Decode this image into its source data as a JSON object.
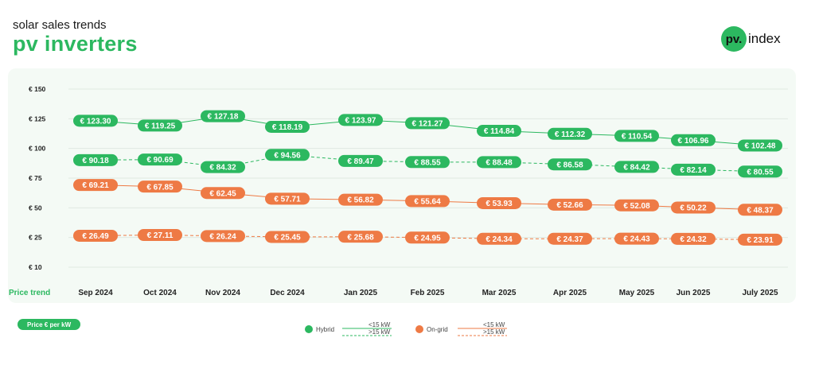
{
  "header": {
    "subtitle": "solar sales trends",
    "title": "pv inverters"
  },
  "logo": {
    "badge": "pv.",
    "text": "index"
  },
  "unit_label": "Price € per kW",
  "legend": {
    "hybrid": "Hybrid",
    "ongrid": "On-grid",
    "solid": "<15 kW",
    "dashed": ">15 kW"
  },
  "colors": {
    "hybrid": "#2cb860",
    "ongrid": "#ee7a45"
  },
  "chart_data": {
    "type": "line",
    "x_row_label": "Price trend",
    "categories": [
      "Sep 2024",
      "Oct 2024",
      "Nov 2024",
      "Dec 2024",
      "Jan 2025",
      "Feb 2025",
      "Mar 2025",
      "Apr 2025",
      "May 2025",
      "Jun 2025",
      "July 2025"
    ],
    "y_ticks": [
      "€ 150",
      "€ 125",
      "€ 100",
      "€ 75",
      "€ 50",
      "€ 25",
      "€ 10"
    ],
    "ylim": [
      10,
      150
    ],
    "grid": true,
    "legend_placement": "bottom-center",
    "series": [
      {
        "name": "Hybrid <15 kW",
        "group": "hybrid",
        "style": "solid",
        "values": [
          123.3,
          119.25,
          127.18,
          118.19,
          123.97,
          121.27,
          114.84,
          112.32,
          110.54,
          106.96,
          102.48
        ],
        "labels": [
          "€ 123.30",
          "€ 119.25",
          "€ 127.18",
          "€ 118.19",
          "€ 123.97",
          "€ 121.27",
          "€ 114.84",
          "€ 112.32",
          "€ 110.54",
          "€ 106.96",
          "€ 102.48"
        ]
      },
      {
        "name": "Hybrid >15 kW",
        "group": "hybrid",
        "style": "dashed",
        "values": [
          90.18,
          90.69,
          84.32,
          94.56,
          89.47,
          88.55,
          88.48,
          86.58,
          84.42,
          82.14,
          80.55
        ],
        "labels": [
          "€ 90.18",
          "€ 90.69",
          "€ 84.32",
          "€ 94.56",
          "€ 89.47",
          "€ 88.55",
          "€ 88.48",
          "€ 86.58",
          "€ 84.42",
          "€ 82.14",
          "€ 80.55"
        ]
      },
      {
        "name": "On-grid <15 kW",
        "group": "ongrid",
        "style": "solid",
        "values": [
          69.21,
          67.85,
          62.45,
          57.71,
          56.82,
          55.64,
          53.93,
          52.66,
          52.08,
          50.22,
          48.37
        ],
        "labels": [
          "€ 69.21",
          "€ 67.85",
          "€ 62.45",
          "€ 57.71",
          "€ 56.82",
          "€ 55.64",
          "€ 53.93",
          "€ 52.66",
          "€ 52.08",
          "€ 50.22",
          "€ 48.37"
        ]
      },
      {
        "name": "On-grid >15 kW",
        "group": "ongrid",
        "style": "dashed",
        "values": [
          26.49,
          27.11,
          26.24,
          25.45,
          25.68,
          24.95,
          24.34,
          24.37,
          24.43,
          24.32,
          23.91
        ],
        "labels": [
          "€ 26.49",
          "€ 27.11",
          "€ 26.24",
          "€ 25.45",
          "€ 25.68",
          "€ 24.95",
          "€ 24.34",
          "€ 24.37",
          "€ 24.43",
          "€ 24.32",
          "€ 23.91"
        ]
      }
    ]
  }
}
